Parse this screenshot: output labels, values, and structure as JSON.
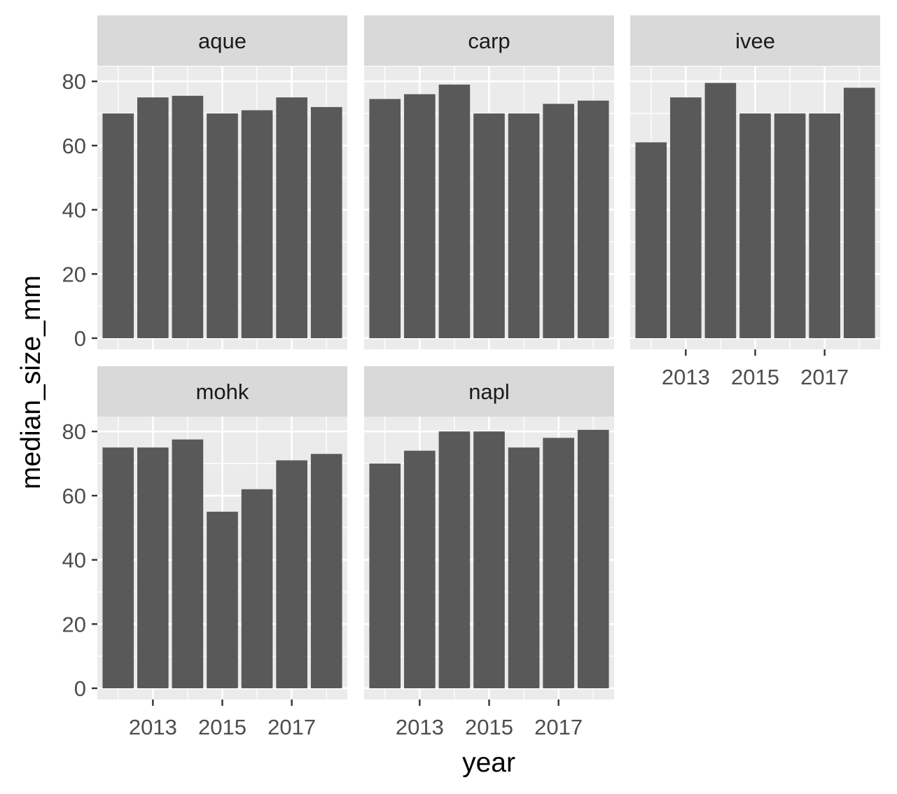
{
  "chart_data": {
    "type": "bar",
    "facet_by": "site",
    "xlabel": "year",
    "ylabel": "median_size_mm",
    "x": [
      2012,
      2013,
      2014,
      2015,
      2016,
      2017,
      2018
    ],
    "x_ticks": [
      2013,
      2015,
      2017
    ],
    "y_ticks": [
      0,
      20,
      40,
      60,
      80
    ],
    "ylim": [
      0,
      95
    ],
    "grid": true,
    "bar_color": "#595959",
    "panel_background": "#ebebeb",
    "strip_background": "#d9d9d9",
    "panels": [
      {
        "name": "aque",
        "values": [
          70,
          75,
          75.5,
          70,
          71,
          75,
          72
        ]
      },
      {
        "name": "carp",
        "values": [
          74.5,
          76,
          79,
          70,
          70,
          73,
          74
        ]
      },
      {
        "name": "ivee",
        "values": [
          61,
          75,
          79.5,
          70,
          70,
          70,
          78
        ]
      },
      {
        "name": "mohk",
        "values": [
          75,
          75,
          77.5,
          55,
          62,
          71,
          73
        ]
      },
      {
        "name": "napl",
        "values": [
          70,
          74,
          80,
          80,
          75,
          78,
          80.5
        ]
      }
    ]
  }
}
